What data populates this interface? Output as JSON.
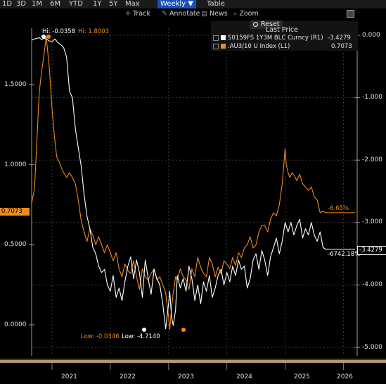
{
  "toolbar": {
    "ranges": [
      "1D",
      "3D",
      "1M",
      "6M",
      "YTD",
      "1Y",
      "5Y",
      "Max"
    ],
    "period": "Weekly ▼",
    "table": "Table"
  },
  "tools": {
    "track": "Track",
    "annotate": "Annotate",
    "news": "News",
    "zoom": "Zoom"
  },
  "legend": {
    "reset": "Reset",
    "header": "Last Price",
    "series": [
      {
        "name": "S0159FS 1Y3M BLC Curncy (R1)",
        "value": "-3.4279",
        "color": "#ffffff"
      },
      {
        "name": ".AU3/10 U Index (L1)",
        "value": "0.7073",
        "color": "#f08a18"
      }
    ]
  },
  "annotations": {
    "hi_white": "Hi: -0.0358",
    "hi_orange": "Hi: 1.8003",
    "low_orange": "Low: -0.0346",
    "low_white": "Low: -4.7140",
    "pct_orange": "-6.65%",
    "pct_white": "-6742.18%"
  },
  "flags": {
    "left": "0.7073",
    "right": "-3.4279"
  },
  "chart_data": {
    "type": "line",
    "x_ticks": [
      "2021",
      "2022",
      "2023",
      "2024",
      "2025",
      "2026"
    ],
    "left_axis": {
      "ticks": [
        "0.0000",
        "0.5000",
        "1.0000",
        "1.5000"
      ],
      "range": [
        -0.15,
        1.85
      ]
    },
    "right_axis": {
      "ticks": [
        "0.000",
        "-1.000",
        "-2.000",
        "-3.000",
        "-4.000",
        "-5.000"
      ],
      "range": [
        -5.05,
        0.2
      ]
    },
    "series": [
      {
        "name": ".AU3/10 U Index (L1)",
        "axis": "left",
        "color": "#f08a18",
        "x": [
          2020.65,
          2020.7,
          2020.74,
          2020.78,
          2020.82,
          2020.86,
          2020.9,
          2020.95,
          2021.0,
          2021.04,
          2021.08,
          2021.12,
          2021.16,
          2021.2,
          2021.25,
          2021.3,
          2021.35,
          2021.4,
          2021.45,
          2021.5,
          2021.55,
          2021.6,
          2021.65,
          2021.7,
          2021.75,
          2021.8,
          2021.85,
          2021.9,
          2021.95,
          2022.0,
          2022.05,
          2022.1,
          2022.15,
          2022.2,
          2022.25,
          2022.3,
          2022.35,
          2022.4,
          2022.45,
          2022.5,
          2022.55,
          2022.6,
          2022.65,
          2022.7,
          2022.75,
          2022.8,
          2022.85,
          2022.9,
          2022.95,
          2023.0,
          2023.02,
          2023.05,
          2023.08,
          2023.12,
          2023.15,
          2023.2,
          2023.25,
          2023.3,
          2023.35,
          2023.4,
          2023.45,
          2023.5,
          2023.55,
          2023.6,
          2023.65,
          2023.7,
          2023.75,
          2023.8,
          2023.85,
          2023.9,
          2023.95,
          2024.0,
          2024.05,
          2024.1,
          2024.15,
          2024.2,
          2024.25,
          2024.3,
          2024.35,
          2024.4,
          2024.45,
          2024.5,
          2024.55,
          2024.6,
          2024.65,
          2024.7,
          2024.75,
          2024.8,
          2024.85,
          2024.9,
          2024.95,
          2025.0,
          2025.02,
          2025.05,
          2025.08,
          2025.12,
          2025.16,
          2025.2,
          2025.25,
          2025.3,
          2025.35,
          2025.4,
          2025.45,
          2025.5,
          2025.55,
          2025.6,
          2025.65,
          2025.7,
          2025.75
        ],
        "y": [
          0.76,
          0.85,
          1.15,
          1.45,
          1.58,
          1.68,
          1.8,
          1.62,
          1.35,
          1.18,
          1.05,
          1.02,
          0.98,
          0.95,
          0.92,
          0.95,
          0.92,
          0.88,
          0.78,
          0.65,
          0.58,
          0.52,
          0.6,
          0.56,
          0.5,
          0.55,
          0.5,
          0.45,
          0.5,
          0.45,
          0.4,
          0.45,
          0.35,
          0.3,
          0.38,
          0.34,
          0.32,
          0.4,
          0.3,
          0.22,
          0.35,
          0.3,
          0.28,
          0.32,
          0.35,
          0.28,
          0.3,
          0.25,
          0.2,
          0.05,
          -0.03,
          0.1,
          0.2,
          0.3,
          0.28,
          0.35,
          0.3,
          0.28,
          0.22,
          0.35,
          0.3,
          0.42,
          0.36,
          0.32,
          0.3,
          0.42,
          0.38,
          0.3,
          0.36,
          0.32,
          0.4,
          0.38,
          0.35,
          0.42,
          0.37,
          0.45,
          0.42,
          0.48,
          0.5,
          0.55,
          0.48,
          0.5,
          0.58,
          0.62,
          0.62,
          0.58,
          0.66,
          0.7,
          0.68,
          0.75,
          0.88,
          1.1,
          1.0,
          0.95,
          0.92,
          0.95,
          0.93,
          0.9,
          0.94,
          0.88,
          0.86,
          0.84,
          0.86,
          0.8,
          0.78,
          0.7,
          0.71,
          0.7,
          0.7
        ]
      },
      {
        "name": "S0159FS 1Y3M BLC Curncy (R1)",
        "axis": "right",
        "color": "#ffffff",
        "x": [
          2020.65,
          2020.7,
          2020.74,
          2020.78,
          2020.82,
          2020.86,
          2020.9,
          2020.95,
          2021.0,
          2021.05,
          2021.1,
          2021.15,
          2021.2,
          2021.25,
          2021.3,
          2021.35,
          2021.4,
          2021.45,
          2021.5,
          2021.55,
          2021.6,
          2021.65,
          2021.7,
          2021.75,
          2021.8,
          2021.85,
          2021.9,
          2021.95,
          2022.0,
          2022.05,
          2022.1,
          2022.15,
          2022.2,
          2022.25,
          2022.3,
          2022.35,
          2022.4,
          2022.45,
          2022.5,
          2022.55,
          2022.6,
          2022.65,
          2022.7,
          2022.75,
          2022.8,
          2022.85,
          2022.9,
          2022.95,
          2023.0,
          2023.02,
          2023.05,
          2023.08,
          2023.12,
          2023.15,
          2023.2,
          2023.25,
          2023.3,
          2023.35,
          2023.4,
          2023.45,
          2023.5,
          2023.55,
          2023.6,
          2023.65,
          2023.7,
          2023.75,
          2023.8,
          2023.85,
          2023.9,
          2023.95,
          2024.0,
          2024.05,
          2024.1,
          2024.15,
          2024.2,
          2024.25,
          2024.3,
          2024.35,
          2024.4,
          2024.45,
          2024.5,
          2024.55,
          2024.6,
          2024.65,
          2024.7,
          2024.75,
          2024.8,
          2024.85,
          2024.9,
          2024.95,
          2025.0,
          2025.05,
          2025.1,
          2025.15,
          2025.2,
          2025.25,
          2025.3,
          2025.35,
          2025.4,
          2025.45,
          2025.5,
          2025.55,
          2025.6,
          2025.65,
          2025.7,
          2025.75
        ],
        "y": [
          -0.08,
          -0.06,
          -0.05,
          -0.04,
          -0.07,
          -0.05,
          -0.06,
          -0.09,
          -0.1,
          -0.06,
          -0.12,
          -0.15,
          -0.2,
          -0.35,
          -0.9,
          -1.0,
          -1.5,
          -1.8,
          -2.1,
          -2.55,
          -2.9,
          -3.1,
          -3.4,
          -3.5,
          -3.7,
          -3.8,
          -3.75,
          -4.0,
          -4.1,
          -3.85,
          -4.2,
          -4.05,
          -4.25,
          -3.95,
          -3.7,
          -3.55,
          -3.9,
          -3.6,
          -3.8,
          -4.2,
          -3.6,
          -3.9,
          -4.15,
          -3.75,
          -3.9,
          -4.0,
          -4.3,
          -4.7,
          -4.3,
          -4.1,
          -4.5,
          -4.65,
          -4.4,
          -3.85,
          -4.05,
          -3.9,
          -4.1,
          -3.7,
          -3.9,
          -4.25,
          -4.0,
          -4.3,
          -3.95,
          -4.1,
          -3.85,
          -4.2,
          -4.05,
          -3.85,
          -3.75,
          -4.0,
          -3.8,
          -3.95,
          -3.7,
          -3.85,
          -3.6,
          -3.75,
          -3.7,
          -4.05,
          -3.9,
          -3.6,
          -3.5,
          -3.75,
          -3.45,
          -3.6,
          -3.85,
          -3.55,
          -3.4,
          -3.25,
          -3.5,
          -3.3,
          -3.0,
          -3.15,
          -3.0,
          -3.2,
          -3.05,
          -2.95,
          -3.25,
          -3.1,
          -3.2,
          -3.0,
          -3.2,
          -3.3,
          -3.15,
          -3.4,
          -3.43,
          -3.43
        ]
      }
    ]
  }
}
